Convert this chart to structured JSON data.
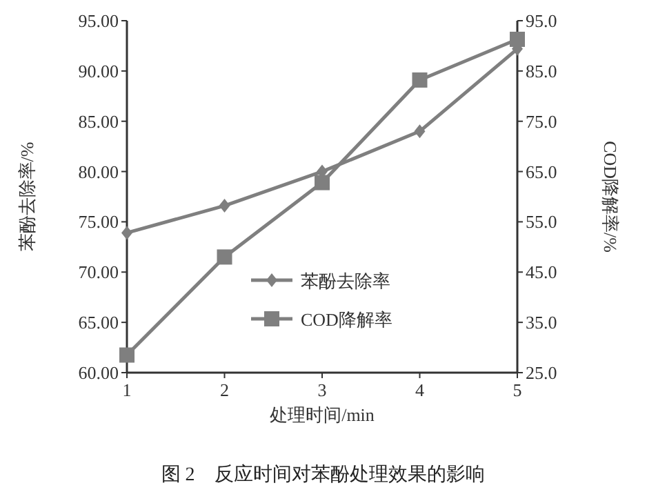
{
  "chart_data": {
    "type": "line",
    "xlabel": "处理时间/min",
    "ylabel": "苯酚去除率/%",
    "y2label": "COD降解率/%",
    "annotations": [
      "图 2　反应时间对苯酚处理效果的影响"
    ],
    "x": [
      1,
      2,
      3,
      4,
      5
    ],
    "series": [
      {
        "name": "苯酚去除率",
        "color": "#7f7f7f",
        "marker": "diamond",
        "values": [
          73.9,
          76.6,
          80.0,
          84.0,
          92.2
        ]
      },
      {
        "name": "COD降解率",
        "color": "#7f7f7f",
        "marker": "square",
        "axis": "y2",
        "values": [
          28.5,
          48.0,
          62.8,
          83.2,
          91.3
        ]
      }
    ],
    "xlim": [
      1,
      5
    ],
    "xticks": [
      1,
      2,
      3,
      4,
      5
    ],
    "ylim": [
      60,
      95
    ],
    "yticks": [
      {
        "value": 60,
        "label": "60.00"
      },
      {
        "value": 65,
        "label": "65.00"
      },
      {
        "value": 70,
        "label": "70.00"
      },
      {
        "value": 75,
        "label": "75.00"
      },
      {
        "value": 80,
        "label": "80.00"
      },
      {
        "value": 85,
        "label": "85.00"
      },
      {
        "value": 90,
        "label": "90.00"
      },
      {
        "value": 95,
        "label": "95.00"
      }
    ],
    "y2lim": [
      25,
      95
    ],
    "y2ticks": [
      {
        "value": 25,
        "label": "25.0"
      },
      {
        "value": 35,
        "label": "35.0"
      },
      {
        "value": 45,
        "label": "45.0"
      },
      {
        "value": 55,
        "label": "55.0"
      },
      {
        "value": 65,
        "label": "65.0"
      },
      {
        "value": 75,
        "label": "75.0"
      },
      {
        "value": 85,
        "label": "85.0"
      },
      {
        "value": 95,
        "label": "95.0"
      }
    ],
    "legend": "bottom",
    "grid": false,
    "line_style": "solid"
  }
}
